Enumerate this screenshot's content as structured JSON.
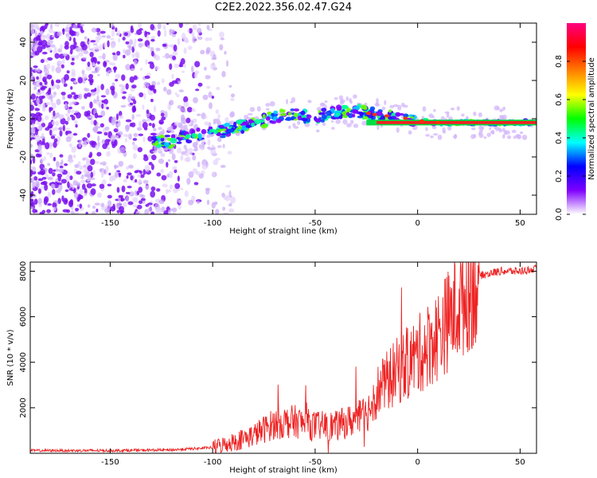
{
  "title": "C2E2.2022.356.02.47.G24",
  "chart_data": [
    {
      "type": "heatmap",
      "xlabel": "Height of straight line (km)",
      "ylabel": "Frequency (Hz)",
      "xlim": [
        -189,
        58
      ],
      "ylim": [
        -50,
        50
      ],
      "xticks": [
        -150,
        -100,
        -50,
        0,
        50
      ],
      "yticks": [
        -40,
        -20,
        0,
        20,
        40
      ],
      "colorbar": {
        "label": "Normalized spectral amplitude",
        "range": [
          0,
          1
        ],
        "ticks": [
          "0.0",
          "0.2",
          "0.4",
          "0.6",
          "0.8"
        ],
        "colors": [
          "#ffffff",
          "#7f00ff",
          "#0000ff",
          "#00ffff",
          "#00ff00",
          "#ffff00",
          "#ff8000",
          "#ff0000",
          "#ff0080"
        ]
      },
      "ridge": {
        "x": [
          -129,
          -120,
          -110,
          -100,
          -90,
          -80,
          -70,
          -60,
          -50,
          -40,
          -30,
          -20,
          -10,
          0,
          10,
          20,
          30,
          40,
          50,
          58
        ],
        "y": [
          -11,
          -12,
          -9,
          -8,
          -5,
          -3,
          1,
          2,
          1,
          3,
          4,
          2,
          1,
          -1,
          -2,
          -2,
          -2,
          -2,
          -2,
          -2
        ]
      },
      "noise_region_x": [
        -189,
        -100
      ]
    },
    {
      "type": "line",
      "xlabel": "Height of straight line (km)",
      "ylabel": "SNR (10 * v/v)",
      "xlim": [
        -189,
        58
      ],
      "ylim": [
        0,
        8400
      ],
      "xticks": [
        -150,
        -100,
        -50,
        0,
        50
      ],
      "yticks": [
        2000,
        4000,
        6000,
        8000
      ],
      "color": "#ee2222",
      "trend": {
        "x": [
          -189,
          -150,
          -120,
          -100,
          -90,
          -80,
          -70,
          -60,
          -50,
          -40,
          -30,
          -25,
          -20,
          -10,
          0,
          10,
          20,
          30,
          40,
          50,
          58
        ],
        "y": [
          120,
          120,
          150,
          250,
          500,
          800,
          1300,
          1400,
          1200,
          1200,
          1500,
          1700,
          2700,
          3600,
          4300,
          5200,
          6500,
          7800,
          8000,
          8000,
          8100
        ]
      }
    }
  ]
}
